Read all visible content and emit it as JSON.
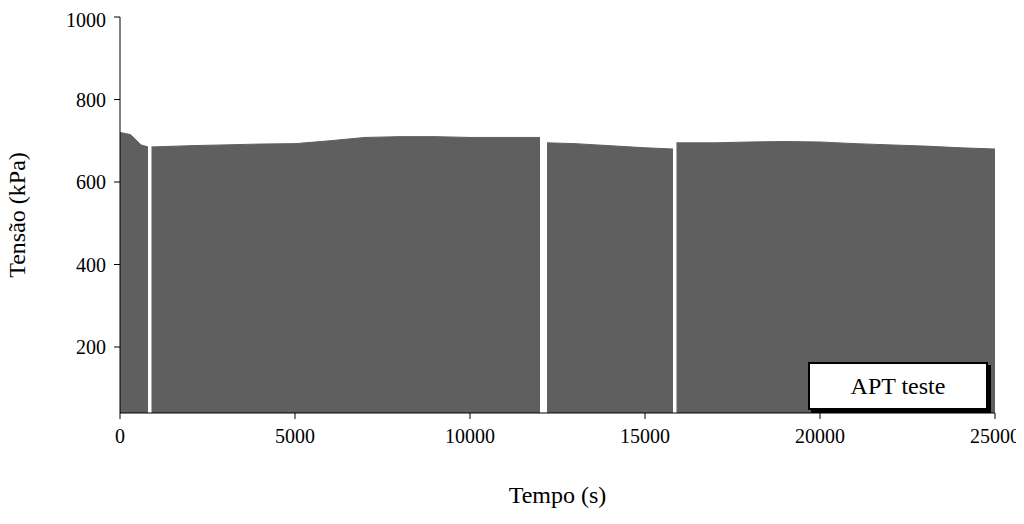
{
  "chart_data": {
    "type": "area",
    "x_label": "Tempo (s)",
    "y_label": "Tensão (kPa)",
    "annotation": "APT teste",
    "color": "#5f5f5f",
    "x": [
      0,
      300,
      600,
      800,
      830,
      900,
      2000,
      3000,
      4000,
      5000,
      6000,
      7000,
      8000,
      9000,
      10000,
      11000,
      12000,
      12100,
      12200,
      13000,
      14000,
      15000,
      15800,
      15850,
      15900,
      17000,
      18000,
      19000,
      20000,
      21000,
      22000,
      23000,
      24000,
      25000
    ],
    "values": [
      720,
      715,
      690,
      685,
      null,
      685,
      688,
      690,
      692,
      693,
      700,
      708,
      710,
      710,
      708,
      708,
      708,
      null,
      695,
      693,
      688,
      683,
      680,
      null,
      695,
      695,
      697,
      698,
      697,
      693,
      690,
      687,
      683,
      680
    ],
    "xlim": [
      0,
      25000
    ],
    "xticks": [
      0,
      5000,
      10000,
      15000,
      20000,
      25000
    ],
    "ylim": [
      40,
      1000
    ],
    "yticks": [
      200,
      400,
      600,
      800,
      1000
    ],
    "grid": false
  }
}
